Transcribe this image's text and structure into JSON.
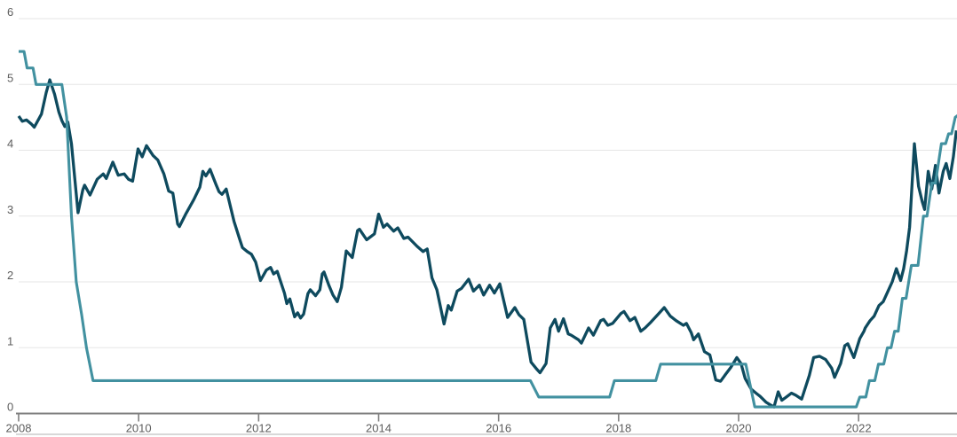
{
  "page": {
    "background": "#ffffff"
  },
  "chart_data": {
    "type": "line",
    "title": "",
    "grid": {
      "show": true,
      "color": "#e6e6e6"
    },
    "axis_color": "#7f7f7f",
    "label_color": "#5d5d5d",
    "divider_color": "#d8d8d8",
    "x_axis": {
      "min": 2008,
      "max": 2023.64,
      "ticks": [
        {
          "value": 2008,
          "label": "2008"
        },
        {
          "value": 2010,
          "label": "2010"
        },
        {
          "value": 2012,
          "label": "2012"
        },
        {
          "value": 2014,
          "label": "2014"
        },
        {
          "value": 2016,
          "label": "2016"
        },
        {
          "value": 2018,
          "label": "2018"
        },
        {
          "value": 2020,
          "label": "2020"
        },
        {
          "value": 2022,
          "label": "2022"
        }
      ]
    },
    "y_axis": {
      "min": 0,
      "max": 6,
      "ticks": [
        {
          "value": 0,
          "label": "0"
        },
        {
          "value": 1,
          "label": "1"
        },
        {
          "value": 2,
          "label": "2"
        },
        {
          "value": 3,
          "label": "3"
        },
        {
          "value": 4,
          "label": "4"
        },
        {
          "value": 5,
          "label": "5"
        },
        {
          "value": 6,
          "label": "6"
        }
      ]
    },
    "series": [
      {
        "name": "dark-line",
        "color": "#0e4a5e",
        "width": 3.3,
        "points": [
          [
            2008.0,
            4.52
          ],
          [
            2008.06,
            4.44
          ],
          [
            2008.13,
            4.46
          ],
          [
            2008.21,
            4.4
          ],
          [
            2008.26,
            4.35
          ],
          [
            2008.38,
            4.55
          ],
          [
            2008.46,
            4.88
          ],
          [
            2008.52,
            5.07
          ],
          [
            2008.6,
            4.85
          ],
          [
            2008.67,
            4.58
          ],
          [
            2008.72,
            4.45
          ],
          [
            2008.77,
            4.36
          ],
          [
            2008.82,
            4.43
          ],
          [
            2008.88,
            4.1
          ],
          [
            2008.99,
            3.05
          ],
          [
            2009.07,
            3.4
          ],
          [
            2009.1,
            3.47
          ],
          [
            2009.19,
            3.32
          ],
          [
            2009.31,
            3.56
          ],
          [
            2009.41,
            3.64
          ],
          [
            2009.46,
            3.57
          ],
          [
            2009.57,
            3.82
          ],
          [
            2009.66,
            3.62
          ],
          [
            2009.76,
            3.64
          ],
          [
            2009.83,
            3.56
          ],
          [
            2009.9,
            3.53
          ],
          [
            2009.99,
            4.02
          ],
          [
            2010.06,
            3.9
          ],
          [
            2010.13,
            4.07
          ],
          [
            2010.24,
            3.92
          ],
          [
            2010.32,
            3.85
          ],
          [
            2010.42,
            3.64
          ],
          [
            2010.5,
            3.38
          ],
          [
            2010.57,
            3.35
          ],
          [
            2010.65,
            2.88
          ],
          [
            2010.68,
            2.84
          ],
          [
            2010.79,
            3.04
          ],
          [
            2010.92,
            3.25
          ],
          [
            2011.02,
            3.44
          ],
          [
            2011.07,
            3.68
          ],
          [
            2011.12,
            3.61
          ],
          [
            2011.19,
            3.71
          ],
          [
            2011.29,
            3.48
          ],
          [
            2011.34,
            3.37
          ],
          [
            2011.39,
            3.33
          ],
          [
            2011.46,
            3.41
          ],
          [
            2011.59,
            2.92
          ],
          [
            2011.68,
            2.66
          ],
          [
            2011.73,
            2.52
          ],
          [
            2011.81,
            2.46
          ],
          [
            2011.88,
            2.42
          ],
          [
            2011.95,
            2.3
          ],
          [
            2012.03,
            2.02
          ],
          [
            2012.13,
            2.18
          ],
          [
            2012.2,
            2.22
          ],
          [
            2012.25,
            2.12
          ],
          [
            2012.31,
            2.16
          ],
          [
            2012.43,
            1.83
          ],
          [
            2012.47,
            1.67
          ],
          [
            2012.52,
            1.74
          ],
          [
            2012.6,
            1.47
          ],
          [
            2012.65,
            1.53
          ],
          [
            2012.7,
            1.45
          ],
          [
            2012.75,
            1.51
          ],
          [
            2012.82,
            1.82
          ],
          [
            2012.86,
            1.88
          ],
          [
            2012.95,
            1.79
          ],
          [
            2013.02,
            1.88
          ],
          [
            2013.06,
            2.12
          ],
          [
            2013.09,
            2.15
          ],
          [
            2013.17,
            1.95
          ],
          [
            2013.24,
            1.8
          ],
          [
            2013.31,
            1.7
          ],
          [
            2013.38,
            1.92
          ],
          [
            2013.46,
            2.47
          ],
          [
            2013.56,
            2.37
          ],
          [
            2013.65,
            2.78
          ],
          [
            2013.68,
            2.8
          ],
          [
            2013.8,
            2.64
          ],
          [
            2013.93,
            2.73
          ],
          [
            2014.0,
            3.03
          ],
          [
            2014.08,
            2.83
          ],
          [
            2014.14,
            2.88
          ],
          [
            2014.25,
            2.77
          ],
          [
            2014.32,
            2.82
          ],
          [
            2014.42,
            2.66
          ],
          [
            2014.49,
            2.68
          ],
          [
            2014.64,
            2.54
          ],
          [
            2014.74,
            2.46
          ],
          [
            2014.81,
            2.5
          ],
          [
            2014.89,
            2.06
          ],
          [
            2014.97,
            1.88
          ],
          [
            2015.09,
            1.36
          ],
          [
            2015.16,
            1.64
          ],
          [
            2015.21,
            1.57
          ],
          [
            2015.31,
            1.86
          ],
          [
            2015.38,
            1.9
          ],
          [
            2015.5,
            2.04
          ],
          [
            2015.58,
            1.86
          ],
          [
            2015.68,
            1.95
          ],
          [
            2015.75,
            1.8
          ],
          [
            2015.85,
            1.95
          ],
          [
            2015.93,
            1.83
          ],
          [
            2016.02,
            1.97
          ],
          [
            2016.15,
            1.46
          ],
          [
            2016.27,
            1.61
          ],
          [
            2016.34,
            1.5
          ],
          [
            2016.42,
            1.43
          ],
          [
            2016.54,
            0.78
          ],
          [
            2016.64,
            0.67
          ],
          [
            2016.69,
            0.62
          ],
          [
            2016.79,
            0.76
          ],
          [
            2016.86,
            1.3
          ],
          [
            2016.94,
            1.43
          ],
          [
            2017.0,
            1.25
          ],
          [
            2017.08,
            1.44
          ],
          [
            2017.16,
            1.21
          ],
          [
            2017.21,
            1.19
          ],
          [
            2017.33,
            1.12
          ],
          [
            2017.38,
            1.07
          ],
          [
            2017.5,
            1.3
          ],
          [
            2017.58,
            1.19
          ],
          [
            2017.7,
            1.41
          ],
          [
            2017.75,
            1.43
          ],
          [
            2017.82,
            1.34
          ],
          [
            2017.9,
            1.37
          ],
          [
            2018.04,
            1.52
          ],
          [
            2018.09,
            1.55
          ],
          [
            2018.19,
            1.41
          ],
          [
            2018.27,
            1.46
          ],
          [
            2018.37,
            1.25
          ],
          [
            2018.44,
            1.3
          ],
          [
            2018.54,
            1.39
          ],
          [
            2018.65,
            1.5
          ],
          [
            2018.76,
            1.61
          ],
          [
            2018.86,
            1.48
          ],
          [
            2018.96,
            1.41
          ],
          [
            2019.08,
            1.34
          ],
          [
            2019.13,
            1.37
          ],
          [
            2019.21,
            1.23
          ],
          [
            2019.25,
            1.12
          ],
          [
            2019.33,
            1.21
          ],
          [
            2019.43,
            0.94
          ],
          [
            2019.52,
            0.89
          ],
          [
            2019.62,
            0.51
          ],
          [
            2019.7,
            0.49
          ],
          [
            2019.77,
            0.58
          ],
          [
            2019.87,
            0.7
          ],
          [
            2019.97,
            0.85
          ],
          [
            2020.04,
            0.76
          ],
          [
            2020.11,
            0.53
          ],
          [
            2020.21,
            0.37
          ],
          [
            2020.29,
            0.31
          ],
          [
            2020.36,
            0.26
          ],
          [
            2020.46,
            0.17
          ],
          [
            2020.53,
            0.13
          ],
          [
            2020.59,
            0.1
          ],
          [
            2020.66,
            0.33
          ],
          [
            2020.72,
            0.2
          ],
          [
            2020.78,
            0.24
          ],
          [
            2020.88,
            0.31
          ],
          [
            2020.95,
            0.28
          ],
          [
            2021.05,
            0.22
          ],
          [
            2021.18,
            0.58
          ],
          [
            2021.25,
            0.85
          ],
          [
            2021.35,
            0.87
          ],
          [
            2021.45,
            0.82
          ],
          [
            2021.55,
            0.69
          ],
          [
            2021.6,
            0.55
          ],
          [
            2021.7,
            0.76
          ],
          [
            2021.77,
            1.03
          ],
          [
            2021.82,
            1.06
          ],
          [
            2021.92,
            0.85
          ],
          [
            2022.02,
            1.14
          ],
          [
            2022.09,
            1.25
          ],
          [
            2022.11,
            1.3
          ],
          [
            2022.19,
            1.41
          ],
          [
            2022.26,
            1.48
          ],
          [
            2022.34,
            1.64
          ],
          [
            2022.41,
            1.7
          ],
          [
            2022.48,
            1.84
          ],
          [
            2022.56,
            2.0
          ],
          [
            2022.63,
            2.2
          ],
          [
            2022.7,
            2.02
          ],
          [
            2022.75,
            2.2
          ],
          [
            2022.8,
            2.47
          ],
          [
            2022.85,
            2.83
          ],
          [
            2022.93,
            4.1
          ],
          [
            2023.0,
            3.45
          ],
          [
            2023.06,
            3.22
          ],
          [
            2023.1,
            3.1
          ],
          [
            2023.16,
            3.68
          ],
          [
            2023.22,
            3.41
          ],
          [
            2023.28,
            3.77
          ],
          [
            2023.34,
            3.35
          ],
          [
            2023.41,
            3.68
          ],
          [
            2023.46,
            3.8
          ],
          [
            2023.52,
            3.57
          ],
          [
            2023.58,
            3.9
          ],
          [
            2023.63,
            4.3
          ]
        ]
      },
      {
        "name": "teal-step-line",
        "color": "#4291a0",
        "width": 3.1,
        "points": [
          [
            2008.0,
            5.5
          ],
          [
            2008.09,
            5.5
          ],
          [
            2008.14,
            5.25
          ],
          [
            2008.24,
            5.25
          ],
          [
            2008.29,
            5.0
          ],
          [
            2008.72,
            5.0
          ],
          [
            2008.8,
            4.5
          ],
          [
            2008.88,
            3.0
          ],
          [
            2008.96,
            2.0
          ],
          [
            2009.05,
            1.5
          ],
          [
            2009.13,
            1.0
          ],
          [
            2009.24,
            0.5
          ],
          [
            2016.53,
            0.5
          ],
          [
            2016.67,
            0.25
          ],
          [
            2017.85,
            0.25
          ],
          [
            2017.93,
            0.5
          ],
          [
            2018.62,
            0.5
          ],
          [
            2018.7,
            0.75
          ],
          [
            2020.12,
            0.75
          ],
          [
            2020.27,
            0.1
          ],
          [
            2021.96,
            0.1
          ],
          [
            2022.02,
            0.25
          ],
          [
            2022.12,
            0.25
          ],
          [
            2022.18,
            0.5
          ],
          [
            2022.27,
            0.5
          ],
          [
            2022.33,
            0.75
          ],
          [
            2022.42,
            0.75
          ],
          [
            2022.48,
            1.0
          ],
          [
            2022.54,
            1.0
          ],
          [
            2022.6,
            1.25
          ],
          [
            2022.66,
            1.25
          ],
          [
            2022.73,
            1.75
          ],
          [
            2022.79,
            1.75
          ],
          [
            2022.88,
            2.25
          ],
          [
            2022.99,
            2.25
          ],
          [
            2023.08,
            3.0
          ],
          [
            2023.14,
            3.0
          ],
          [
            2023.22,
            3.5
          ],
          [
            2023.28,
            3.5
          ],
          [
            2023.38,
            4.1
          ],
          [
            2023.45,
            4.1
          ],
          [
            2023.5,
            4.25
          ],
          [
            2023.55,
            4.25
          ],
          [
            2023.61,
            4.5
          ],
          [
            2023.68,
            4.55
          ]
        ]
      }
    ]
  }
}
